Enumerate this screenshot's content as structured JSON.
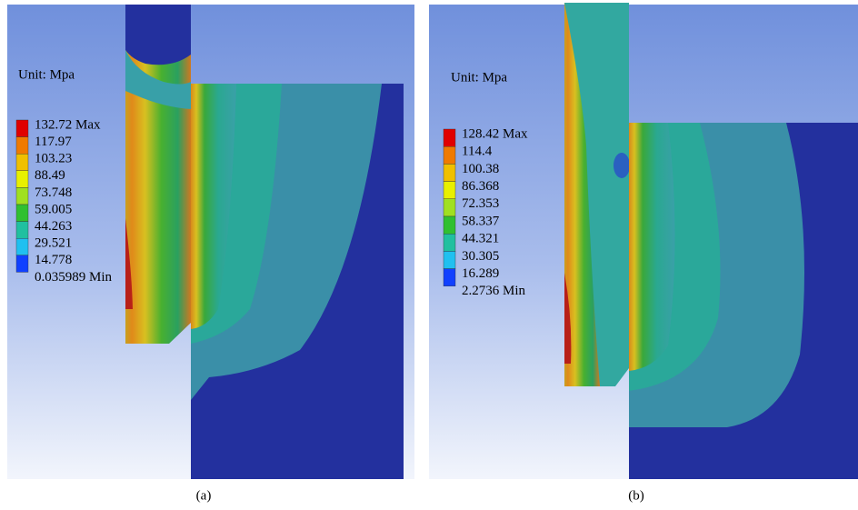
{
  "panels": [
    {
      "unit": "Unit: Mpa",
      "legend": [
        "132.72 Max",
        "117.97",
        "103.23",
        "88.49",
        "73.748",
        "59.005",
        "44.263",
        "29.521",
        "14.778",
        "0.035989 Min"
      ],
      "caption": "(a)"
    },
    {
      "unit": "Unit: Mpa",
      "legend": [
        "128.42 Max",
        "114.4",
        "100.38",
        "86.368",
        "72.353",
        "58.337",
        "44.321",
        "30.305",
        "16.289",
        "2.2736 Min"
      ],
      "caption": "(b)"
    }
  ]
}
